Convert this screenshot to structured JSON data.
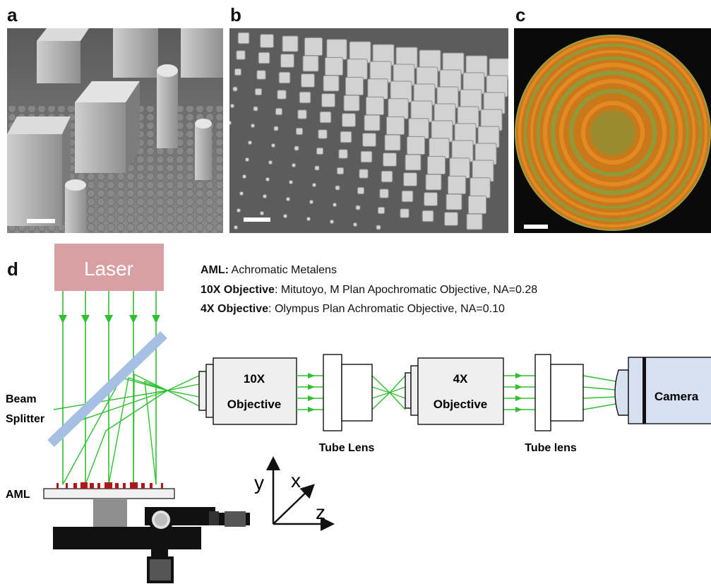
{
  "panels": {
    "a_letter": "a",
    "b_letter": "b",
    "c_letter": "c",
    "d_letter": "d"
  },
  "legend": {
    "aml_term": "AML:",
    "aml_desc": " Achromatic Metalens",
    "obj10_term": "10X Objective",
    "obj10_desc": ": Mitutoyo,  M Plan Apochromatic Objective, NA=0.28",
    "obj4_term": "4X Objective",
    "obj4_desc": ": Olympus Plan Achromatic Objective, NA=0.10"
  },
  "diagram": {
    "laser": "Laser",
    "beam_splitter_line1": "Beam",
    "beam_splitter_line2": "Splitter",
    "aml": "AML",
    "objective10_line1": "10X",
    "objective10_line2": "Objective",
    "objective4_line1": "4X",
    "objective4_line2": "Objective",
    "tube_lens_1": "Tube Lens",
    "tube_lens_2": "Tube lens",
    "camera": "Camera",
    "axis_x": "x",
    "axis_y": "y",
    "axis_z": "z"
  },
  "colors": {
    "laser": "#d9a0a3",
    "beam": "#2fc02f",
    "splitter": "#a6c0e3",
    "camera": "#d7e1f1",
    "optic": "#efefef",
    "orange_lens": "#d4780e"
  }
}
